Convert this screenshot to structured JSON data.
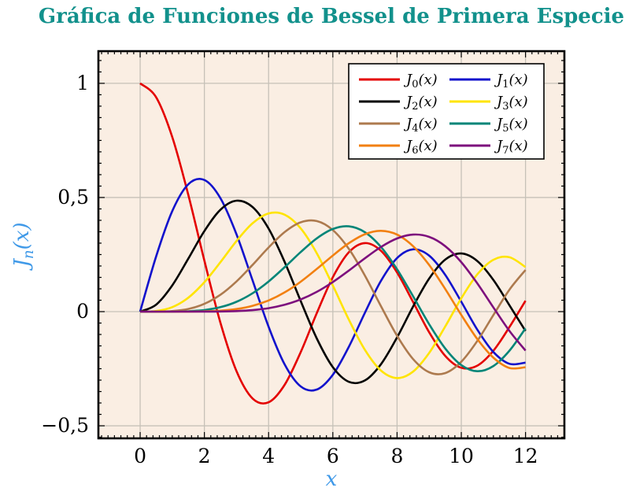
{
  "chart_data": {
    "type": "line",
    "title": "Gráfica de Funciones de Bessel de Primera Especie",
    "xlabel": "x",
    "ylabel": "J_n(x)",
    "x": [
      0,
      0.5,
      1,
      1.5,
      2,
      2.5,
      3,
      3.5,
      4,
      4.5,
      5,
      5.5,
      6,
      6.5,
      7,
      7.5,
      8,
      8.5,
      9,
      9.5,
      10,
      10.5,
      11,
      11.5,
      12
    ],
    "series": [
      {
        "label": "J_0(x)",
        "color": "#e40000",
        "values": [
          1,
          0.9385,
          0.7652,
          0.5118,
          0.2239,
          -0.0484,
          -0.2601,
          -0.3801,
          -0.3971,
          -0.3205,
          -0.1776,
          -0.0068,
          0.1506,
          0.2601,
          0.3001,
          0.2663,
          0.1717,
          0.0419,
          -0.0903,
          -0.1939,
          -0.2459,
          -0.2366,
          -0.1712,
          -0.0677,
          0.0477
        ]
      },
      {
        "label": "J_1(x)",
        "color": "#1212cc",
        "values": [
          0,
          0.2423,
          0.4401,
          0.5579,
          0.5767,
          0.4971,
          0.3391,
          0.1374,
          -0.066,
          -0.2311,
          -0.3276,
          -0.3414,
          -0.2767,
          -0.1538,
          -0.0047,
          0.1352,
          0.2346,
          0.2731,
          0.2453,
          0.1613,
          0.0435,
          -0.0789,
          -0.1768,
          -0.2284,
          -0.2234
        ]
      },
      {
        "label": "J_2(x)",
        "color": "#000000",
        "values": [
          0,
          0.0306,
          0.1149,
          0.2321,
          0.3528,
          0.4461,
          0.4861,
          0.4586,
          0.3641,
          0.2178,
          0.0466,
          -0.1173,
          -0.2429,
          -0.3074,
          -0.3014,
          -0.2303,
          -0.113,
          0.0223,
          0.1448,
          0.2279,
          0.2546,
          0.2216,
          0.139,
          0.0279,
          -0.0849
        ]
      },
      {
        "label": "J_3(x)",
        "color": "#ffe400",
        "values": [
          0,
          0.0026,
          0.0196,
          0.061,
          0.1289,
          0.2166,
          0.3091,
          0.3868,
          0.4302,
          0.4247,
          0.3648,
          0.2561,
          0.1148,
          -0.0353,
          -0.1676,
          -0.2581,
          -0.2911,
          -0.2626,
          -0.1809,
          -0.0653,
          0.0584,
          0.1633,
          0.2273,
          0.2381,
          0.1951
        ]
      },
      {
        "label": "J_4(x)",
        "color": "#ad7a4e",
        "values": [
          0,
          0.0002,
          0.0025,
          0.0118,
          0.034,
          0.0738,
          0.132,
          0.2044,
          0.2811,
          0.3484,
          0.3912,
          0.3967,
          0.3576,
          0.2748,
          0.1578,
          0.0238,
          -0.1054,
          -0.2077,
          -0.2655,
          -0.2691,
          -0.2196,
          -0.1283,
          -0.015,
          0.0963,
          0.1825
        ]
      },
      {
        "label": "J_5(x)",
        "color": "#008578",
        "values": [
          0,
          1e-05,
          0.0002,
          0.0018,
          0.007,
          0.0195,
          0.043,
          0.0804,
          0.1321,
          0.1947,
          0.2611,
          0.3209,
          0.3621,
          0.3736,
          0.3479,
          0.2833,
          0.1858,
          0.0671,
          -0.055,
          -0.1613,
          -0.2341,
          -0.2611,
          -0.2383,
          -0.1711,
          -0.0735
        ]
      },
      {
        "label": "J_6(x)",
        "color": "#f28011",
        "values": [
          0,
          0,
          2e-05,
          0.0002,
          0.0012,
          0.0042,
          0.0114,
          0.0254,
          0.0491,
          0.0843,
          0.131,
          0.1868,
          0.2458,
          0.2999,
          0.3392,
          0.3541,
          0.3376,
          0.2867,
          0.2043,
          0.0993,
          -0.0145,
          -0.1203,
          -0.2016,
          -0.2468,
          -0.2437
        ]
      },
      {
        "label": "J_7(x)",
        "color": "#7d0f7d",
        "values": [
          0,
          0,
          0,
          2e-05,
          0.0002,
          0.0008,
          0.0025,
          0.0067,
          0.0152,
          0.03,
          0.0534,
          0.0866,
          0.1296,
          0.1801,
          0.2336,
          0.2832,
          0.3206,
          0.3376,
          0.3275,
          0.2868,
          0.2167,
          0.1236,
          0.0184,
          -0.0846,
          -0.1703
        ]
      }
    ],
    "xticks": [
      {
        "v": 0,
        "label": "0"
      },
      {
        "v": 2,
        "label": "2"
      },
      {
        "v": 4,
        "label": "4"
      },
      {
        "v": 6,
        "label": "6"
      },
      {
        "v": 8,
        "label": "8"
      },
      {
        "v": 10,
        "label": "10"
      },
      {
        "v": 12,
        "label": "12"
      }
    ],
    "yticks": [
      {
        "v": 1,
        "label": "1"
      },
      {
        "v": 0.5,
        "label": "0,5"
      },
      {
        "v": 0,
        "label": "0"
      },
      {
        "v": -0.5,
        "label": "−0,5"
      }
    ],
    "xlim": [
      -1.3,
      13.21
    ],
    "ylim": [
      -0.555,
      1.141
    ],
    "minor_step_x": 0.2,
    "minor_step_y": 0.05,
    "grid": true,
    "legend_position": "top-right",
    "legend_columns": 2
  },
  "colors": {
    "title": "#12918c",
    "axis_label": "#3f99e8",
    "plot_bg": "#faeee3",
    "grid": "#c6c1b8",
    "frame": "#000000",
    "tick": "#000000",
    "legend_bg": "#ffffff",
    "legend_border": "#000000"
  }
}
